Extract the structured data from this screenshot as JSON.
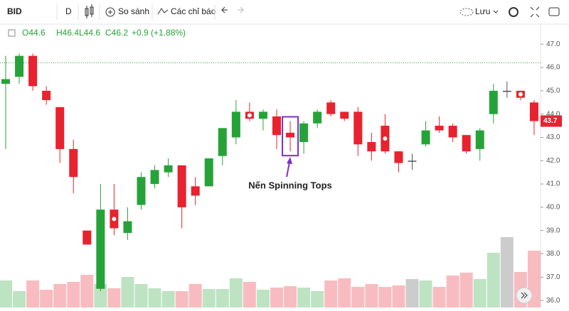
{
  "toolbar": {
    "symbol": "BID",
    "interval": "D",
    "compare": "So sánh",
    "indicators": "Các chỉ báo",
    "save": "Lưu"
  },
  "legend": {
    "open": "O44.6",
    "high": "H46.4",
    "low": "L44.6",
    "close": "C46.2",
    "change": "+0.9 (+1.88%)"
  },
  "chart_data": {
    "type": "candlestick",
    "annotation": "Nến Spinning Tops",
    "annotated_index": 21,
    "up_color": "#26a338",
    "down_color": "#e8222e",
    "neutral_color": "#555555",
    "markers": [
      8,
      18,
      28,
      38
    ],
    "reference_line": 46.2,
    "last_price": 43.7,
    "ylim": [
      35.7,
      47.8
    ],
    "yticks": [
      {
        "value": 36,
        "label": "36.0"
      },
      {
        "value": 37,
        "label": "37.0"
      },
      {
        "value": 38,
        "label": "38.0"
      },
      {
        "value": 39,
        "label": "39.0"
      },
      {
        "value": 40,
        "label": "40.0"
      },
      {
        "value": 41,
        "label": "41.0"
      },
      {
        "value": 42,
        "label": "42.0"
      },
      {
        "value": 43,
        "label": "43.0"
      },
      {
        "value": 44,
        "label": "44.0"
      },
      {
        "value": 45,
        "label": "45.0"
      },
      {
        "value": 46,
        "label": "46.0"
      },
      {
        "value": 47,
        "label": "47.0"
      }
    ],
    "open": [
      45.3,
      45.6,
      46.5,
      45.0,
      44.3,
      42.5,
      39.0,
      36.5,
      39.9,
      38.9,
      40.1,
      41.0,
      41.5,
      41.8,
      40.9,
      40.9,
      42.2,
      43.0,
      44.1,
      43.8,
      43.9,
      43.2,
      42.8,
      43.6,
      44.5,
      44.1,
      44.1,
      42.8,
      43.5,
      42.4,
      42.0,
      42.7,
      43.5,
      43.5,
      43.1,
      42.5,
      44.0,
      45.0,
      45.0,
      44.5
    ],
    "close": [
      45.5,
      46.5,
      45.2,
      44.6,
      42.5,
      41.3,
      38.4,
      39.9,
      39.1,
      39.4,
      41.3,
      41.6,
      41.8,
      40.0,
      40.5,
      42.1,
      43.4,
      44.1,
      43.8,
      44.1,
      43.1,
      43.0,
      43.6,
      44.1,
      44.0,
      43.8,
      42.7,
      42.4,
      42.4,
      41.9,
      42.0,
      43.3,
      43.3,
      43.0,
      42.4,
      43.3,
      45.0,
      45.0,
      44.7,
      43.7
    ],
    "high": [
      46.5,
      46.6,
      46.6,
      45.2,
      44.3,
      42.9,
      39.0,
      41.0,
      41.0,
      40.0,
      41.5,
      41.8,
      42.1,
      41.8,
      41.3,
      42.1,
      43.4,
      44.6,
      44.5,
      44.2,
      44.2,
      43.7,
      43.7,
      44.2,
      44.6,
      44.1,
      44.3,
      43.2,
      44.0,
      42.4,
      42.3,
      43.7,
      43.9,
      43.6,
      43.1,
      43.4,
      45.3,
      45.4,
      45.0,
      44.6
    ],
    "low": [
      42.5,
      45.3,
      45.0,
      44.4,
      41.9,
      40.6,
      38.4,
      36.4,
      38.8,
      38.6,
      39.9,
      40.8,
      41.3,
      39.1,
      40.1,
      40.9,
      41.8,
      42.7,
      43.7,
      43.3,
      42.5,
      42.4,
      42.3,
      43.4,
      43.9,
      43.7,
      42.2,
      42.0,
      42.3,
      41.5,
      41.6,
      42.6,
      43.2,
      42.8,
      42.3,
      42.0,
      43.6,
      44.7,
      44.6,
      43.1
    ],
    "volume": [
      38,
      23,
      38,
      25,
      33,
      36,
      46,
      33,
      27,
      43,
      33,
      27,
      23,
      23,
      33,
      26,
      26,
      41,
      36,
      25,
      28,
      30,
      28,
      23,
      38,
      41,
      29,
      33,
      29,
      31,
      40,
      38,
      29,
      45,
      49,
      40,
      77,
      99,
      50,
      80
    ]
  }
}
